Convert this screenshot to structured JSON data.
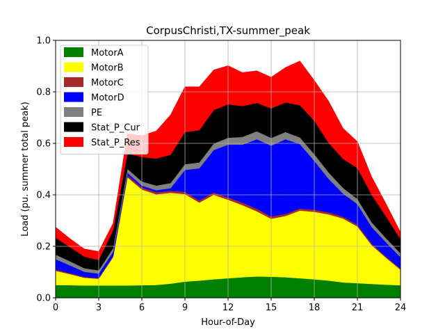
{
  "chart_data": {
    "type": "area",
    "title": "CorpusChristi,TX-summer_peak",
    "xlabel": "Hour-of-Day",
    "ylabel": "Load (pu. summer total peak)",
    "xlim": [
      0,
      24
    ],
    "ylim": [
      0,
      1.0
    ],
    "xticks": [
      0,
      3,
      6,
      9,
      12,
      15,
      18,
      21,
      24
    ],
    "yticks": [
      0.0,
      0.2,
      0.4,
      0.6,
      0.8,
      1.0
    ],
    "xtick_labels": [
      "0",
      "3",
      "6",
      "9",
      "12",
      "15",
      "18",
      "21",
      "24"
    ],
    "ytick_labels": [
      "0.0",
      "0.2",
      "0.4",
      "0.6",
      "0.8",
      "1.0"
    ],
    "grid": true,
    "legend_position": "top-left",
    "stacked": true,
    "x": [
      0,
      1,
      2,
      3,
      4,
      5,
      6,
      7,
      8,
      9,
      10,
      11,
      12,
      13,
      14,
      15,
      16,
      17,
      18,
      19,
      20,
      21,
      22,
      23,
      24
    ],
    "series": [
      {
        "name": "MotorA",
        "color": "#008000",
        "values": [
          0.05,
          0.049,
          0.048,
          0.048,
          0.048,
          0.048,
          0.049,
          0.05,
          0.055,
          0.063,
          0.067,
          0.072,
          0.076,
          0.08,
          0.083,
          0.082,
          0.08,
          0.076,
          0.072,
          0.067,
          0.06,
          0.057,
          0.054,
          0.051,
          0.049
        ]
      },
      {
        "name": "MotorB",
        "color": "#ffff00",
        "values": [
          0.055,
          0.043,
          0.03,
          0.026,
          0.11,
          0.42,
          0.372,
          0.352,
          0.353,
          0.34,
          0.303,
          0.328,
          0.305,
          0.28,
          0.253,
          0.225,
          0.238,
          0.263,
          0.262,
          0.257,
          0.248,
          0.22,
          0.15,
          0.104,
          0.06
        ]
      },
      {
        "name": "MotorC",
        "color": "#a52a2a",
        "values": [
          0.005,
          0.004,
          0.003,
          0.003,
          0.004,
          0.008,
          0.008,
          0.008,
          0.008,
          0.009,
          0.008,
          0.009,
          0.009,
          0.01,
          0.01,
          0.009,
          0.008,
          0.008,
          0.008,
          0.008,
          0.007,
          0.007,
          0.006,
          0.005,
          0.004
        ]
      },
      {
        "name": "MotorD",
        "color": "#0000ff",
        "values": [
          0.04,
          0.03,
          0.02,
          0.017,
          0.017,
          0.01,
          0.007,
          0.008,
          0.01,
          0.085,
          0.125,
          0.165,
          0.205,
          0.225,
          0.27,
          0.275,
          0.29,
          0.25,
          0.19,
          0.13,
          0.09,
          0.08,
          0.065,
          0.055,
          0.045
        ]
      },
      {
        "name": "PE",
        "color": "#808080",
        "values": [
          0.018,
          0.016,
          0.014,
          0.013,
          0.014,
          0.015,
          0.016,
          0.018,
          0.02,
          0.022,
          0.023,
          0.025,
          0.027,
          0.03,
          0.031,
          0.03,
          0.028,
          0.026,
          0.026,
          0.025,
          0.022,
          0.02,
          0.018,
          0.016,
          0.015
        ]
      },
      {
        "name": "Stat_P_Cur",
        "color": "#000000",
        "values": [
          0.065,
          0.055,
          0.045,
          0.04,
          0.07,
          0.06,
          0.095,
          0.105,
          0.11,
          0.125,
          0.125,
          0.13,
          0.13,
          0.12,
          0.11,
          0.115,
          0.115,
          0.125,
          0.13,
          0.115,
          0.113,
          0.12,
          0.107,
          0.085,
          0.055
        ]
      },
      {
        "name": "Stat_P_Res",
        "color": "#ff0000",
        "values": [
          0.042,
          0.033,
          0.03,
          0.033,
          0.027,
          0.077,
          0.083,
          0.107,
          0.155,
          0.176,
          0.169,
          0.156,
          0.15,
          0.13,
          0.125,
          0.121,
          0.136,
          0.172,
          0.157,
          0.162,
          0.119,
          0.103,
          0.07,
          0.049,
          0.027
        ]
      }
    ]
  }
}
